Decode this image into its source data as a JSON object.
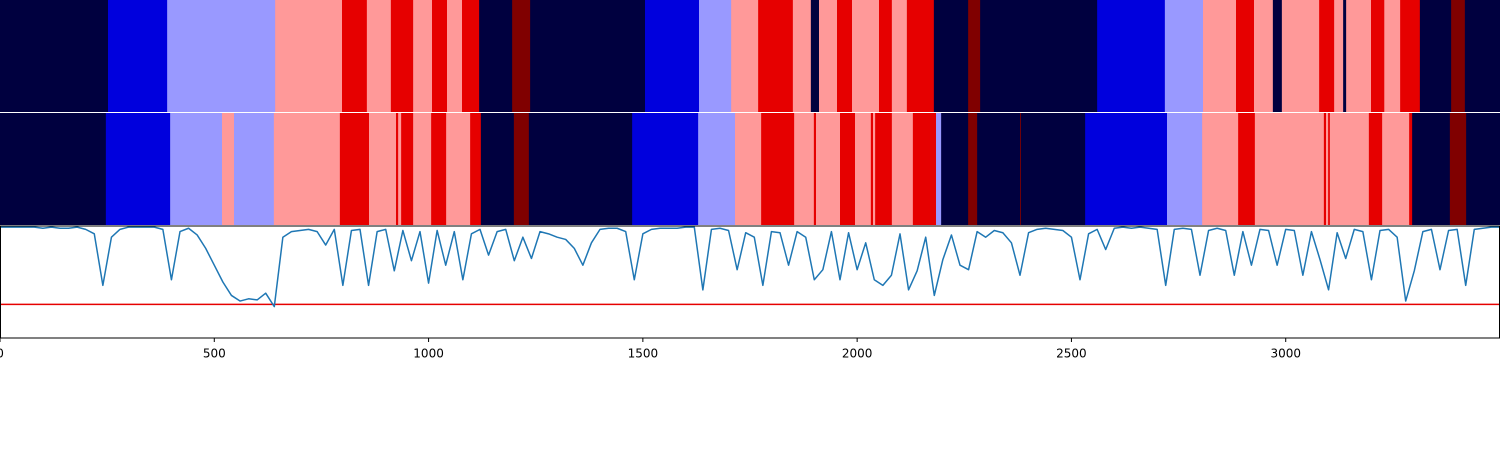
{
  "chart_data": [
    {
      "type": "segments",
      "xlim": [
        0,
        3500
      ],
      "palette": [
        "#00003f",
        "#0000dd",
        "#9999ff",
        "#ff9999",
        "#e60000",
        "#800000"
      ],
      "boundaries": [
        0,
        252,
        390,
        642,
        798,
        856,
        912,
        964,
        1008,
        1043,
        1078,
        1118,
        1195,
        1237,
        1505,
        1631,
        1706,
        1769,
        1850,
        1892,
        1911,
        1953,
        1988,
        2051,
        2081,
        2116,
        2179,
        2259,
        2287,
        2560,
        2718,
        2807,
        2884,
        2926,
        2970,
        2991,
        3078,
        3113,
        3134,
        3141,
        3199,
        3230,
        3267,
        3313,
        3386,
        3418,
        3500
      ],
      "classes": [
        0,
        1,
        2,
        3,
        4,
        3,
        4,
        3,
        4,
        3,
        4,
        0,
        5,
        0,
        1,
        2,
        3,
        4,
        3,
        0,
        3,
        4,
        3,
        4,
        3,
        4,
        0,
        5,
        0,
        1,
        2,
        3,
        4,
        3,
        0,
        3,
        4,
        3,
        0,
        3,
        4,
        3,
        4,
        0,
        5,
        0
      ]
    },
    {
      "type": "segments",
      "xlim": [
        0,
        3500
      ],
      "palette": [
        "#00003f",
        "#0000dd",
        "#9999ff",
        "#ff9999",
        "#e60000",
        "#800000"
      ],
      "boundaries": [
        0,
        247,
        397,
        518,
        546,
        639,
        793,
        861,
        924,
        929,
        936,
        964,
        1006,
        1041,
        1097,
        1122,
        1199,
        1234,
        1475,
        1629,
        1715,
        1776,
        1853,
        1899,
        1904,
        1960,
        1995,
        2032,
        2037,
        2042,
        2081,
        2130,
        2184,
        2196,
        2259,
        2280,
        2380,
        2382,
        2532,
        2723,
        2805,
        2889,
        2928,
        3089,
        3094,
        3099,
        3103,
        3194,
        3225,
        3288,
        3295,
        3383,
        3421,
        3500
      ],
      "classes": [
        0,
        1,
        2,
        3,
        2,
        3,
        4,
        3,
        4,
        3,
        4,
        3,
        4,
        3,
        4,
        0,
        5,
        0,
        1,
        2,
        3,
        4,
        3,
        4,
        3,
        4,
        3,
        4,
        3,
        4,
        3,
        4,
        2,
        0,
        5,
        0,
        5,
        0,
        1,
        2,
        3,
        4,
        3,
        4,
        3,
        4,
        3,
        4,
        3,
        4,
        0,
        5,
        0
      ]
    },
    {
      "type": "line",
      "xlim": [
        0,
        3500
      ],
      "ylim": [
        0,
        1
      ],
      "xticks": [
        0,
        500,
        1000,
        1500,
        2000,
        2500,
        3000
      ],
      "threshold": {
        "value": 0.3,
        "color": "#e60000"
      },
      "x": [
        0,
        20,
        40,
        60,
        80,
        100,
        120,
        140,
        160,
        180,
        200,
        220,
        240,
        260,
        280,
        300,
        320,
        340,
        360,
        380,
        400,
        420,
        440,
        460,
        480,
        500,
        520,
        540,
        560,
        580,
        600,
        620,
        640,
        660,
        680,
        700,
        720,
        740,
        760,
        780,
        800,
        820,
        840,
        860,
        880,
        900,
        920,
        940,
        960,
        980,
        1000,
        1020,
        1040,
        1060,
        1080,
        1100,
        1120,
        1140,
        1160,
        1180,
        1200,
        1220,
        1240,
        1260,
        1280,
        1300,
        1320,
        1340,
        1360,
        1380,
        1400,
        1420,
        1440,
        1460,
        1480,
        1500,
        1520,
        1540,
        1560,
        1580,
        1600,
        1620,
        1640,
        1660,
        1680,
        1700,
        1720,
        1740,
        1760,
        1780,
        1800,
        1820,
        1840,
        1860,
        1880,
        1900,
        1920,
        1940,
        1960,
        1980,
        2000,
        2020,
        2040,
        2060,
        2080,
        2100,
        2120,
        2140,
        2160,
        2180,
        2200,
        2220,
        2240,
        2260,
        2280,
        2300,
        2320,
        2340,
        2360,
        2380,
        2400,
        2420,
        2440,
        2460,
        2480,
        2500,
        2520,
        2540,
        2560,
        2580,
        2600,
        2620,
        2640,
        2660,
        2680,
        2700,
        2720,
        2740,
        2760,
        2780,
        2800,
        2820,
        2840,
        2860,
        2880,
        2900,
        2920,
        2940,
        2960,
        2980,
        3000,
        3020,
        3040,
        3060,
        3080,
        3100,
        3120,
        3140,
        3160,
        3180,
        3200,
        3220,
        3240,
        3260,
        3280,
        3300,
        3320,
        3340,
        3360,
        3380,
        3400,
        3420,
        3440,
        3460,
        3480,
        3500
      ],
      "series": [
        {
          "color": "#1f77b4",
          "values": [
            0.99,
            0.99,
            0.99,
            0.99,
            0.99,
            0.98,
            0.99,
            0.98,
            0.98,
            0.99,
            0.97,
            0.93,
            0.47,
            0.9,
            0.97,
            0.99,
            0.99,
            0.99,
            0.99,
            0.97,
            0.52,
            0.95,
            0.98,
            0.92,
            0.8,
            0.65,
            0.5,
            0.38,
            0.33,
            0.35,
            0.34,
            0.4,
            0.28,
            0.9,
            0.95,
            0.96,
            0.97,
            0.95,
            0.83,
            0.97,
            0.47,
            0.96,
            0.97,
            0.47,
            0.95,
            0.97,
            0.6,
            0.96,
            0.69,
            0.95,
            0.49,
            0.96,
            0.65,
            0.95,
            0.52,
            0.93,
            0.97,
            0.74,
            0.95,
            0.97,
            0.69,
            0.9,
            0.71,
            0.95,
            0.93,
            0.9,
            0.88,
            0.8,
            0.65,
            0.85,
            0.97,
            0.98,
            0.98,
            0.95,
            0.52,
            0.93,
            0.97,
            0.98,
            0.98,
            0.98,
            0.99,
            0.99,
            0.43,
            0.97,
            0.98,
            0.96,
            0.61,
            0.94,
            0.9,
            0.47,
            0.95,
            0.94,
            0.65,
            0.95,
            0.9,
            0.52,
            0.61,
            0.95,
            0.52,
            0.94,
            0.61,
            0.85,
            0.52,
            0.47,
            0.56,
            0.93,
            0.43,
            0.6,
            0.9,
            0.38,
            0.7,
            0.92,
            0.65,
            0.61,
            0.95,
            0.9,
            0.96,
            0.94,
            0.85,
            0.56,
            0.94,
            0.97,
            0.98,
            0.97,
            0.96,
            0.9,
            0.52,
            0.93,
            0.97,
            0.79,
            0.98,
            0.99,
            0.98,
            0.99,
            0.98,
            0.97,
            0.47,
            0.97,
            0.98,
            0.97,
            0.56,
            0.96,
            0.98,
            0.96,
            0.56,
            0.95,
            0.65,
            0.97,
            0.96,
            0.65,
            0.97,
            0.96,
            0.56,
            0.95,
            0.7,
            0.43,
            0.94,
            0.71,
            0.97,
            0.95,
            0.52,
            0.96,
            0.97,
            0.9,
            0.33,
            0.6,
            0.95,
            0.97,
            0.61,
            0.96,
            0.97,
            0.47,
            0.97,
            0.98,
            0.99,
            0.99
          ]
        }
      ]
    }
  ]
}
